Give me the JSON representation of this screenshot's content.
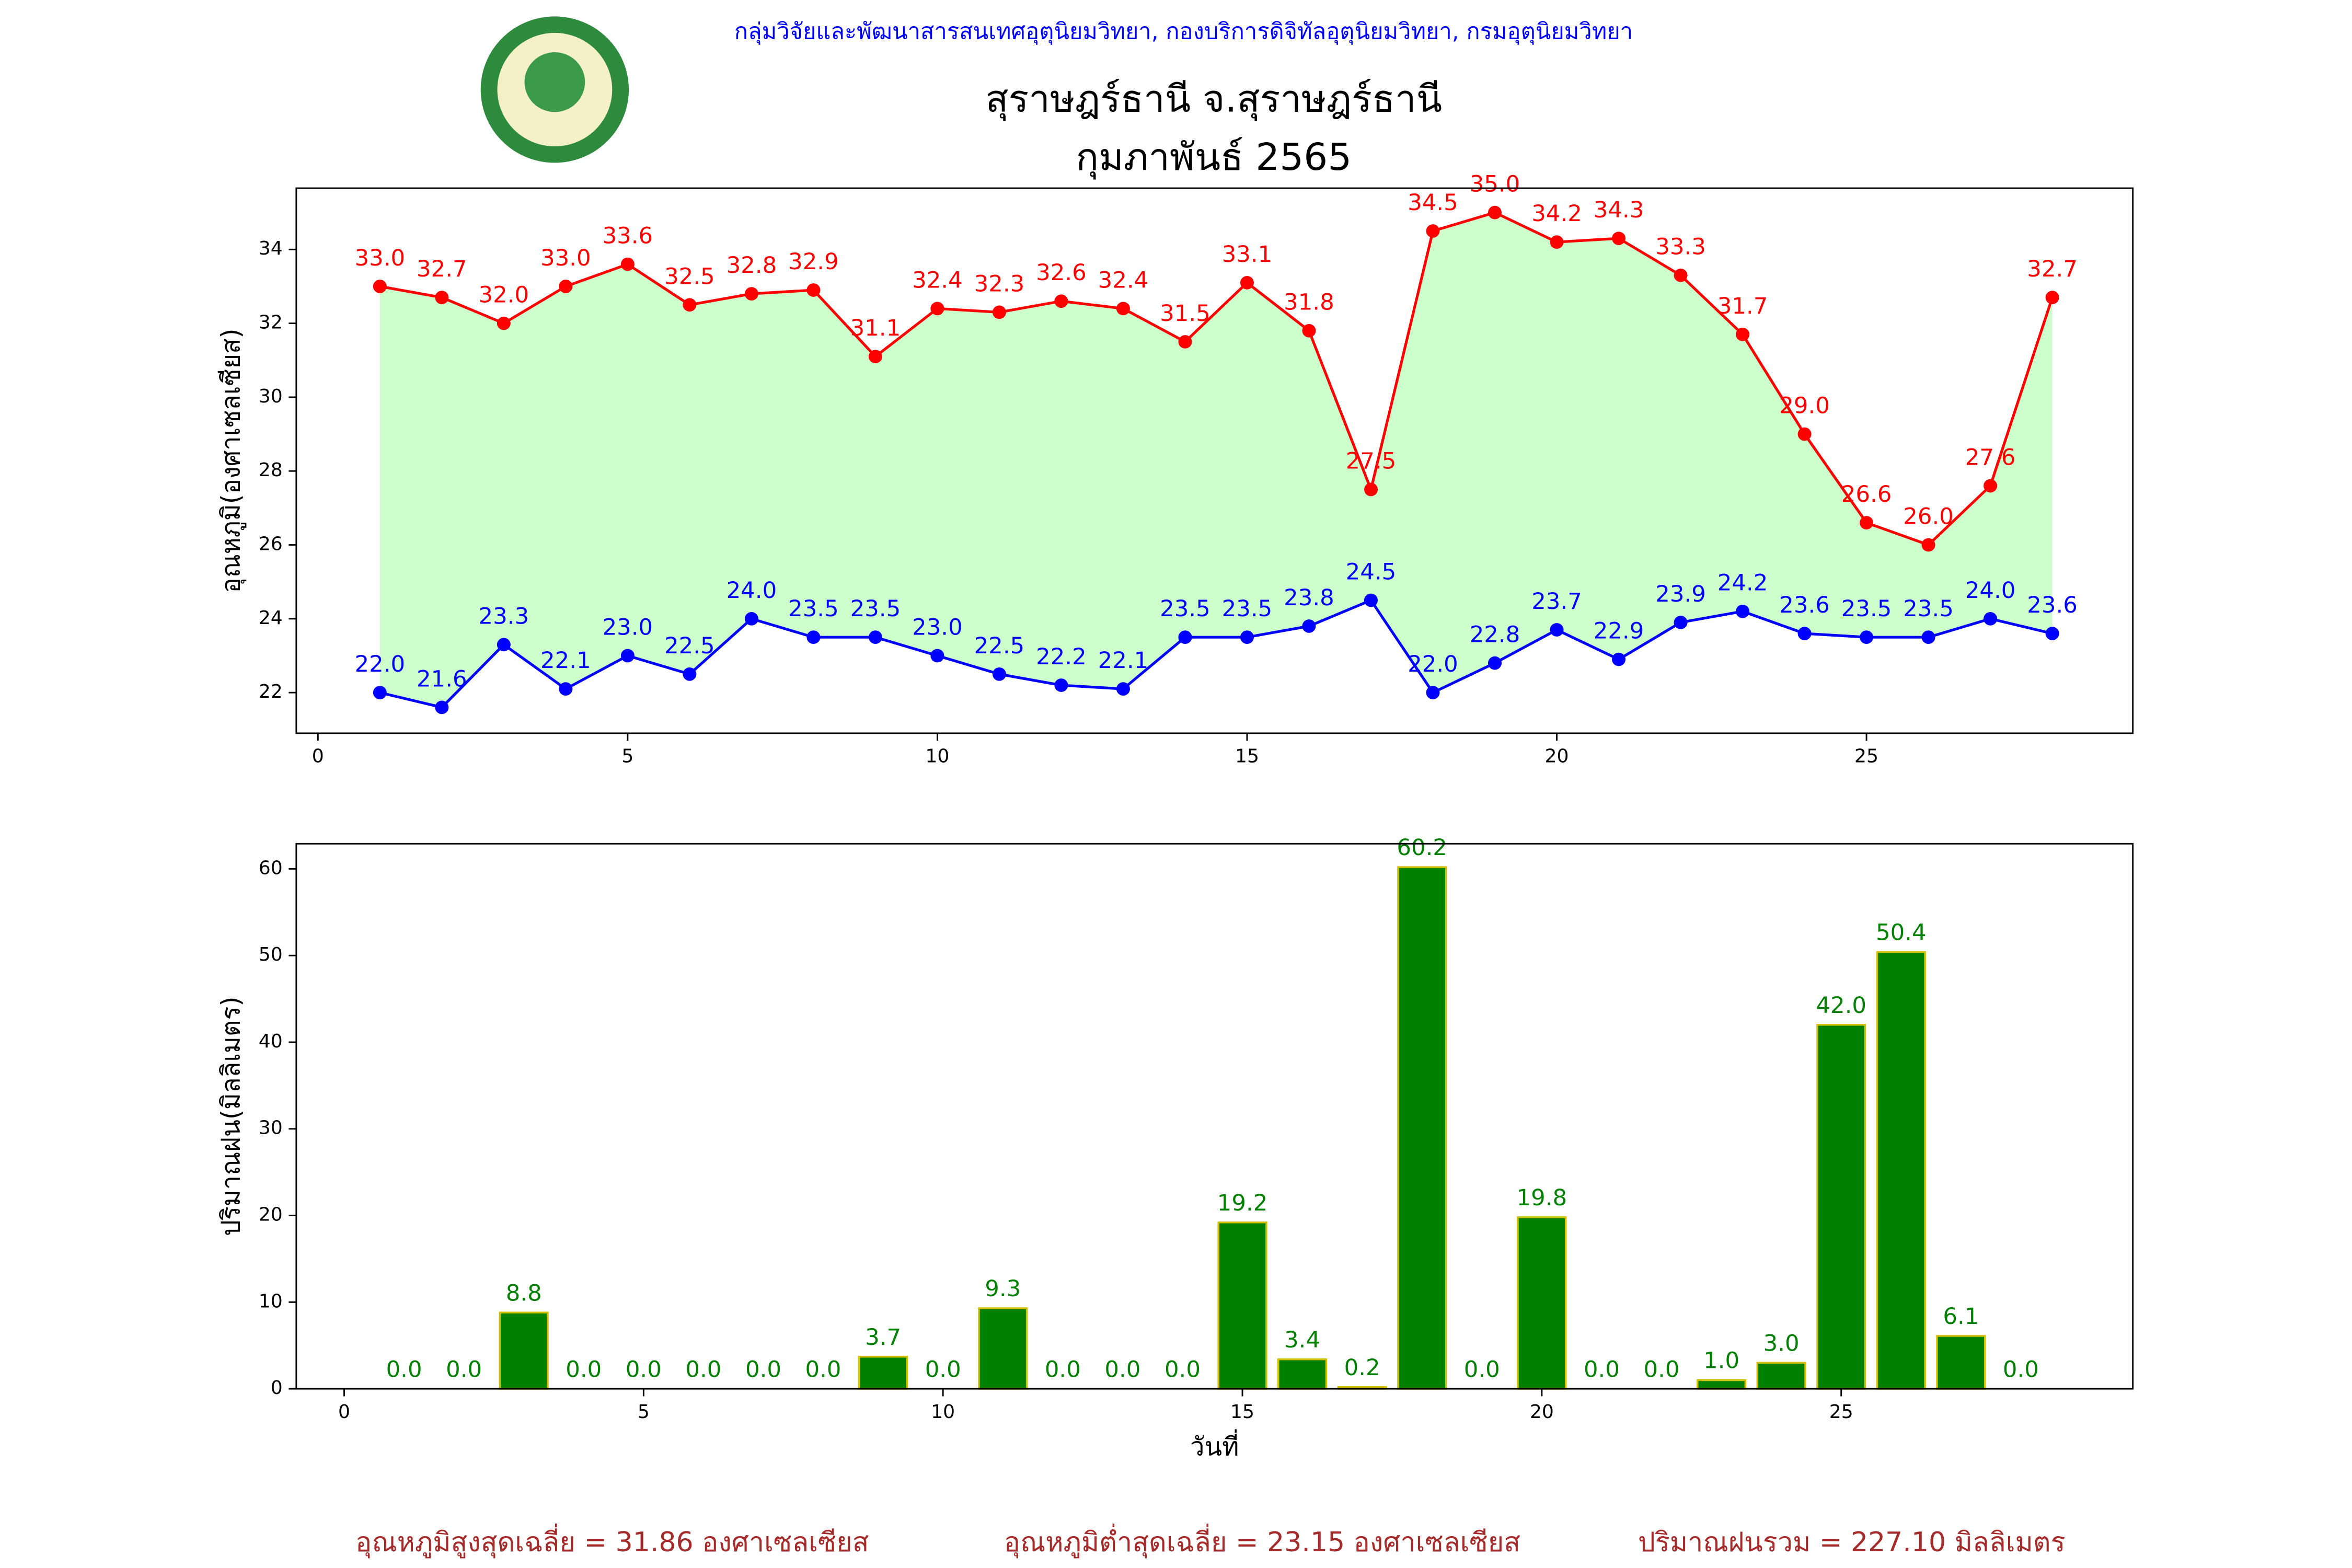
{
  "header": {
    "org": "กลุ่มวิจัยและพัฒนาสารสนเทศอุตุนิยมวิทยา, กองบริการดิจิทัลอุตุนิยมวิทยา, กรมอุตุนิยมวิทยา",
    "title": "สุราษฎร์ธานี จ.สุราษฎร์ธานี",
    "month": "กุมภาพันธ์ 2565"
  },
  "chart_data": [
    {
      "type": "line",
      "ylabel": "อุณหภูมิ(องศาเซลเซียส)",
      "x": [
        1,
        2,
        3,
        4,
        5,
        6,
        7,
        8,
        9,
        10,
        11,
        12,
        13,
        14,
        15,
        16,
        17,
        18,
        19,
        20,
        21,
        22,
        23,
        24,
        25,
        26,
        27,
        28
      ],
      "xlim": [
        -0.35,
        29.3
      ],
      "xticks": [
        0,
        5,
        10,
        15,
        20,
        25
      ],
      "ylim": [
        20.9,
        35.66
      ],
      "yticks": [
        22,
        24,
        26,
        28,
        30,
        32,
        34
      ],
      "fill_between_color": "#ccffcc",
      "series": [
        {
          "color": "#ff0000",
          "values": [
            33.0,
            32.7,
            32.0,
            33.0,
            33.6,
            32.5,
            32.8,
            32.9,
            31.1,
            32.4,
            32.3,
            32.6,
            32.4,
            31.5,
            33.1,
            31.8,
            27.5,
            34.5,
            35.0,
            34.2,
            34.3,
            33.3,
            31.7,
            29.0,
            26.6,
            26.0,
            27.6,
            32.7
          ],
          "value_labels": [
            "33.0",
            "32.7",
            "32.0",
            "33.0",
            "33.6",
            "32.5",
            "32.8",
            "32.9",
            "31.1",
            "32.4",
            "32.3",
            "32.6",
            "32.4",
            "31.5",
            "33.1",
            "31.8",
            "27.5",
            "34.5",
            "35.0",
            "34.2",
            "34.3",
            "33.3",
            "31.7",
            "29.0",
            "26.6",
            "26.0",
            "27.6",
            "32.7"
          ]
        },
        {
          "color": "#0000ff",
          "values": [
            22.0,
            21.6,
            23.3,
            22.1,
            23.0,
            22.5,
            24.0,
            23.5,
            23.5,
            23.0,
            22.5,
            22.2,
            22.1,
            23.5,
            23.5,
            23.8,
            24.5,
            22.0,
            22.8,
            23.7,
            22.9,
            23.9,
            24.2,
            23.6,
            23.5,
            23.5,
            24.0,
            23.6
          ],
          "value_labels": [
            "22.0",
            "21.6",
            "23.3",
            "22.1",
            "23.0",
            "22.5",
            "24.0",
            "23.5",
            "23.5",
            "23.0",
            "22.5",
            "22.2",
            "22.1",
            "23.5",
            "23.5",
            "23.8",
            "24.5",
            "22.0",
            "22.8",
            "23.7",
            "22.9",
            "23.9",
            "24.2",
            "23.6",
            "23.5",
            "23.5",
            "24.0",
            "23.6"
          ]
        }
      ]
    },
    {
      "type": "bar",
      "ylabel": "ปริมาณฝน(มิลลิเมตร)",
      "xlabel": "วันที่",
      "x": [
        1,
        2,
        3,
        4,
        5,
        6,
        7,
        8,
        9,
        10,
        11,
        12,
        13,
        14,
        15,
        16,
        17,
        18,
        19,
        20,
        21,
        22,
        23,
        24,
        25,
        26,
        27,
        28
      ],
      "xlim": [
        -0.8,
        29.87
      ],
      "xticks": [
        0,
        5,
        10,
        15,
        20,
        25
      ],
      "ylim": [
        0,
        62.9
      ],
      "yticks": [
        0,
        10,
        20,
        30,
        40,
        50,
        60
      ],
      "color": "#008000",
      "edge_color": "#d4c000",
      "label_color": "#008000",
      "values": [
        0.0,
        0.0,
        8.8,
        0.0,
        0.0,
        0.0,
        0.0,
        0.0,
        3.7,
        0.0,
        9.3,
        0.0,
        0.0,
        0.0,
        19.2,
        3.4,
        0.2,
        60.2,
        0.0,
        19.8,
        0.0,
        0.0,
        1.0,
        3.0,
        42.0,
        50.4,
        6.1,
        0.0
      ],
      "value_labels": [
        "0.0",
        "0.0",
        "8.8",
        "0.0",
        "0.0",
        "0.0",
        "0.0",
        "0.0",
        "3.7",
        "0.0",
        "9.3",
        "0.0",
        "0.0",
        "0.0",
        "19.2",
        "3.4",
        "0.2",
        "60.2",
        "0.0",
        "19.8",
        "0.0",
        "0.0",
        "1.0",
        "3.0",
        "42.0",
        "50.4",
        "6.1",
        "0.0"
      ]
    }
  ],
  "footer": [
    "อุณหภูมิสูงสุดเฉลี่ย = 31.86 องศาเซลเซียส",
    "อุณหภูมิต่ำสุดเฉลี่ย = 23.15 องศาเซลเซียส",
    "ปริมาณฝนรวม = 227.10 มิลลิเมตร"
  ]
}
